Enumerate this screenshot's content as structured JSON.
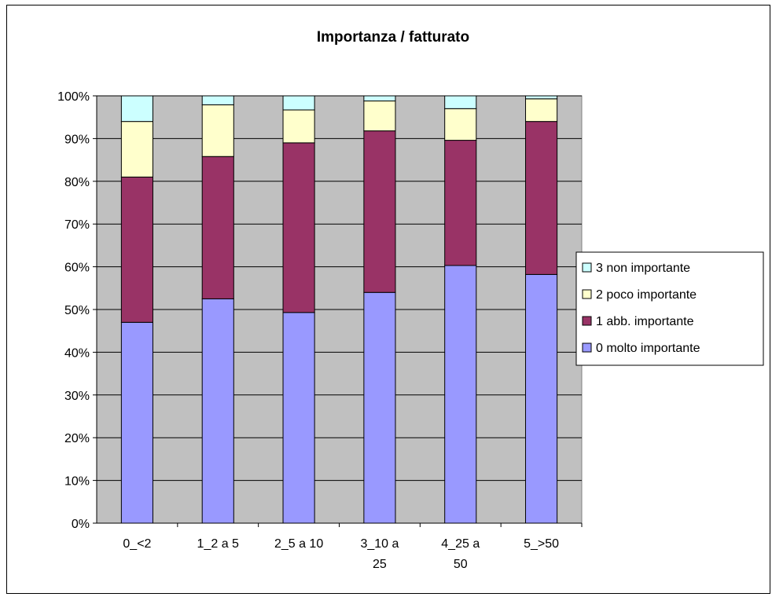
{
  "chart_data": {
    "type": "bar",
    "stacked": "percent",
    "title": "Importanza / fatturato",
    "xlabel": "",
    "ylabel": "",
    "ylim": [
      0,
      100
    ],
    "y_ticks": [
      "0%",
      "10%",
      "20%",
      "30%",
      "40%",
      "50%",
      "60%",
      "70%",
      "80%",
      "90%",
      "100%"
    ],
    "categories": [
      [
        "0_<2"
      ],
      [
        "1_2 a 5"
      ],
      [
        "2_5 a 10"
      ],
      [
        "3_10 a",
        "25"
      ],
      [
        "4_25 a",
        "50"
      ],
      [
        "5_>50"
      ]
    ],
    "series": [
      {
        "name": "0 molto importante",
        "color": "#9999ff",
        "values": [
          47,
          52.5,
          49.3,
          54,
          60.3,
          58.2
        ]
      },
      {
        "name": "1 abb. importante",
        "color": "#993366",
        "values": [
          34,
          33.3,
          39.7,
          37.8,
          29.3,
          35.8
        ]
      },
      {
        "name": "2 poco importante",
        "color": "#ffffcc",
        "values": [
          13,
          12.1,
          7.7,
          7,
          7.4,
          5.3
        ]
      },
      {
        "name": "3 non importante",
        "color": "#ccffff",
        "values": [
          6,
          2.1,
          3.3,
          1.2,
          3,
          0.7
        ]
      }
    ],
    "plot_background": "#c0c0c0",
    "grid": true,
    "legend_position": "right"
  }
}
